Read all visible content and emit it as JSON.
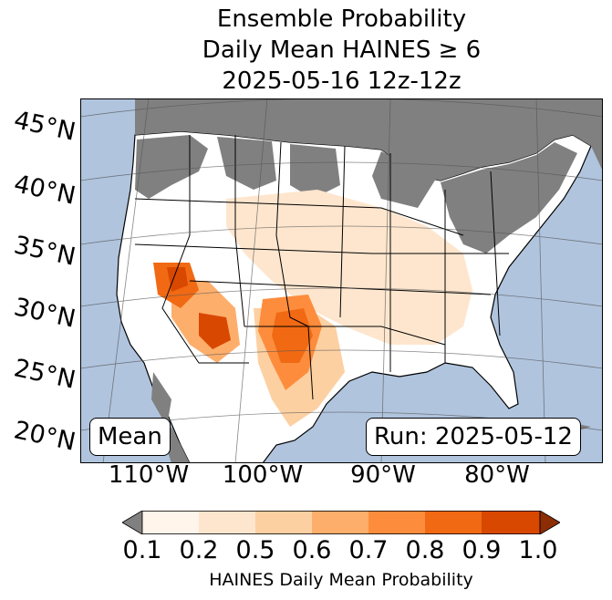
{
  "title": {
    "line1": "Ensemble Probability",
    "line2": "Daily Mean HAINES ≥ 6",
    "line3": "2025-05-16 12z-12z"
  },
  "map": {
    "lat_labels": [
      "45°N",
      "40°N",
      "35°N",
      "30°N",
      "25°N",
      "20°N"
    ],
    "lon_labels": [
      "110°W",
      "100°W",
      "90°W",
      "80°W"
    ],
    "stat_label": "Mean",
    "run_label": "Run: 2025-05-12",
    "colors": {
      "ocean": "#b0c4de",
      "land": "#ffffff",
      "below_threshold": "#808080",
      "state_border": "#000000",
      "graticule": "#555555"
    }
  },
  "colorbar": {
    "label": "HAINES Daily Mean Probability",
    "ticks": [
      "0.1",
      "0.2",
      "0.5",
      "0.6",
      "0.7",
      "0.8",
      "0.9",
      "1.0"
    ],
    "colors": [
      "#fff5eb",
      "#fee6ce",
      "#fdd0a2",
      "#fdae6b",
      "#fd8d3c",
      "#f16913",
      "#d94801"
    ],
    "under_color": "#808080",
    "over_color": "#8c2d04"
  }
}
